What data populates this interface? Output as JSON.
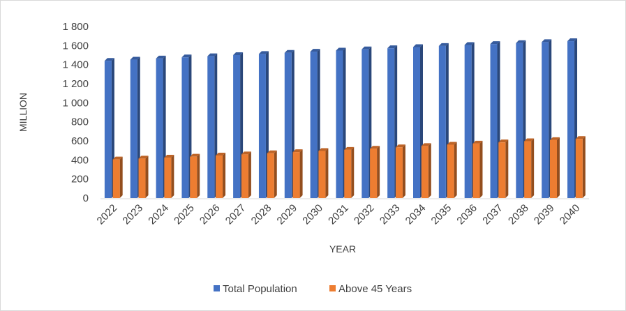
{
  "chart_data": {
    "type": "bar",
    "title": "",
    "xlabel": "YEAR",
    "ylabel": "MILLION",
    "ylim": [
      0,
      1800
    ],
    "yticks": [
      "0",
      "200",
      "400",
      "600",
      "800",
      "1 000",
      "1 200",
      "1 400",
      "1 600",
      "1 800"
    ],
    "grid": false,
    "legend_position": "bottom",
    "categories": [
      "2022",
      "2023",
      "2024",
      "2025",
      "2026",
      "2027",
      "2028",
      "2029",
      "2030",
      "2031",
      "2032",
      "2033",
      "2034",
      "2035",
      "2036",
      "2037",
      "2038",
      "2039",
      "2040"
    ],
    "series": [
      {
        "name": "Total Population",
        "color": "#4472C4",
        "values": [
          1440,
          1452,
          1464,
          1476,
          1488,
          1500,
          1512,
          1524,
          1536,
          1548,
          1560,
          1572,
          1584,
          1596,
          1606,
          1616,
          1626,
          1636,
          1646
        ]
      },
      {
        "name": "Above 45 Years",
        "color": "#ED7D31",
        "values": [
          405,
          414,
          424,
          434,
          446,
          458,
          470,
          482,
          494,
          506,
          518,
          532,
          546,
          560,
          572,
          584,
          596,
          608,
          620
        ]
      }
    ]
  }
}
